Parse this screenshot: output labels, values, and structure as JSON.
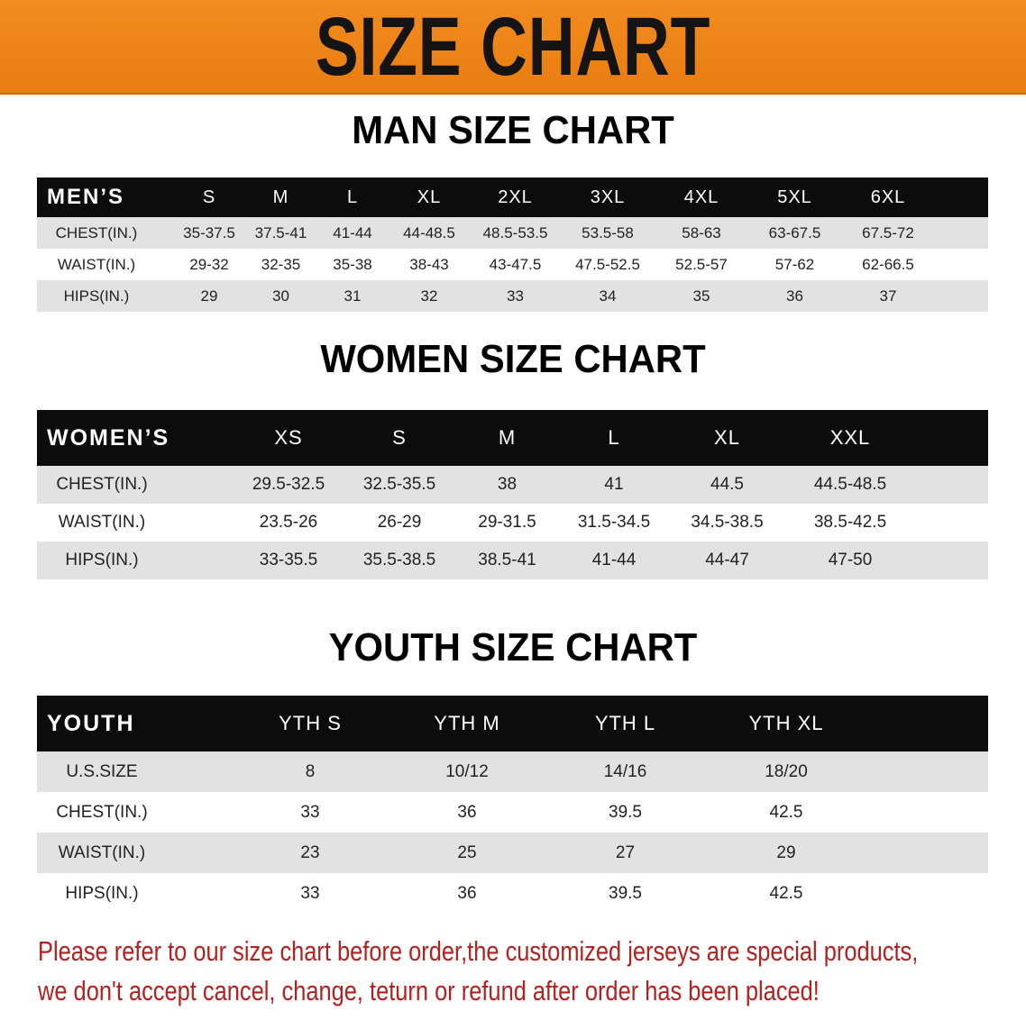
{
  "banner": {
    "title": "SIZE CHART",
    "color": "#ee8419"
  },
  "men": {
    "title": "MAN SIZE CHART",
    "header": [
      "MEN’S",
      "S",
      "M",
      "L",
      "XL",
      "2XL",
      "3XL",
      "4XL",
      "5XL",
      "6XL"
    ],
    "rows": [
      [
        "CHEST(IN.)",
        "35-37.5",
        "37.5-41",
        "41-44",
        "44-48.5",
        "48.5-53.5",
        "53.5-58",
        "58-63",
        "63-67.5",
        "67.5-72"
      ],
      [
        "WAIST(IN.)",
        "29-32",
        "32-35",
        "35-38",
        "38-43",
        "43-47.5",
        "47.5-52.5",
        "52.5-57",
        "57-62",
        "62-66.5"
      ],
      [
        "HIPS(IN.)",
        "29",
        "30",
        "31",
        "32",
        "33",
        "34",
        "35",
        "36",
        "37"
      ]
    ]
  },
  "women": {
    "title": "WOMEN SIZE CHART",
    "header": [
      "WOMEN’S",
      "XS",
      "S",
      "M",
      "L",
      "XL",
      "XXL"
    ],
    "rows": [
      [
        "CHEST(IN.)",
        "29.5-32.5",
        "32.5-35.5",
        "38",
        "41",
        "44.5",
        "44.5-48.5"
      ],
      [
        "WAIST(IN.)",
        "23.5-26",
        "26-29",
        "29-31.5",
        "31.5-34.5",
        "34.5-38.5",
        "38.5-42.5"
      ],
      [
        "HIPS(IN.)",
        "33-35.5",
        "35.5-38.5",
        "38.5-41",
        "41-44",
        "44-47",
        "47-50"
      ]
    ]
  },
  "youth": {
    "title": "YOUTH SIZE CHART",
    "header": [
      "YOUTH",
      "YTH S",
      "YTH M",
      "YTH L",
      "YTH XL"
    ],
    "rows": [
      [
        "U.S.SIZE",
        "8",
        "10/12",
        "14/16",
        "18/20"
      ],
      [
        "CHEST(IN.)",
        "33",
        "36",
        "39.5",
        "42.5"
      ],
      [
        "WAIST(IN.)",
        "23",
        "25",
        "27",
        "29"
      ],
      [
        "HIPS(IN.)",
        "33",
        "36",
        "39.5",
        "42.5"
      ]
    ]
  },
  "footer": {
    "line1": "Please refer to our size chart before order,the customized jerseys are special products,",
    "line2": "we don't accept cancel, change, teturn or refund after order has been placed!",
    "color": "#b3201e"
  }
}
